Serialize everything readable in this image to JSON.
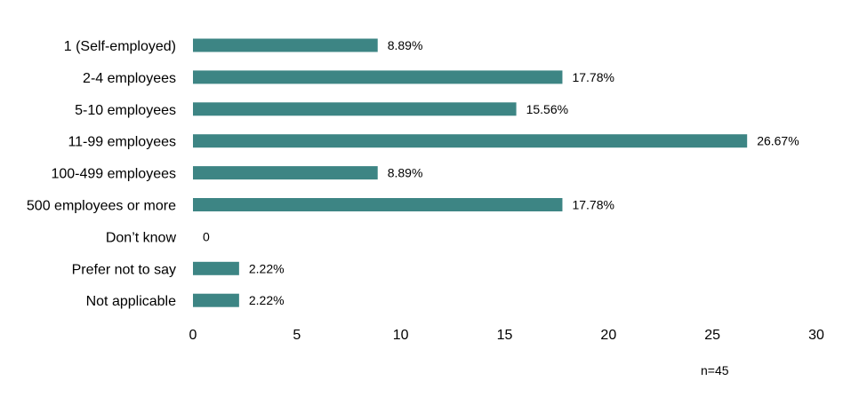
{
  "chart_data": {
    "type": "bar",
    "orientation": "horizontal",
    "categories": [
      "1 (Self-employed)",
      "2-4 employees",
      "5-10 employees",
      "11-99 employees",
      "100-499 employees",
      "500 employees or more",
      "Don’t know",
      "Prefer not to say",
      "Not applicable"
    ],
    "values": [
      8.89,
      17.78,
      15.56,
      26.67,
      8.89,
      17.78,
      0,
      2.22,
      2.22
    ],
    "data_labels": [
      "8.89%",
      "17.78%",
      "15.56%",
      "26.67%",
      "8.89%",
      "17.78%",
      "0",
      "2.22%",
      "2.22%"
    ],
    "xlim": [
      0,
      30
    ],
    "xticks": [
      0,
      5,
      10,
      15,
      20,
      25,
      30
    ],
    "xticklabels": [
      "0",
      "5",
      "10",
      "15",
      "20",
      "25",
      "30"
    ],
    "title": "",
    "xlabel": "",
    "ylabel": "",
    "grid": false,
    "bar_color": "#3d8584"
  },
  "note": "n=45"
}
